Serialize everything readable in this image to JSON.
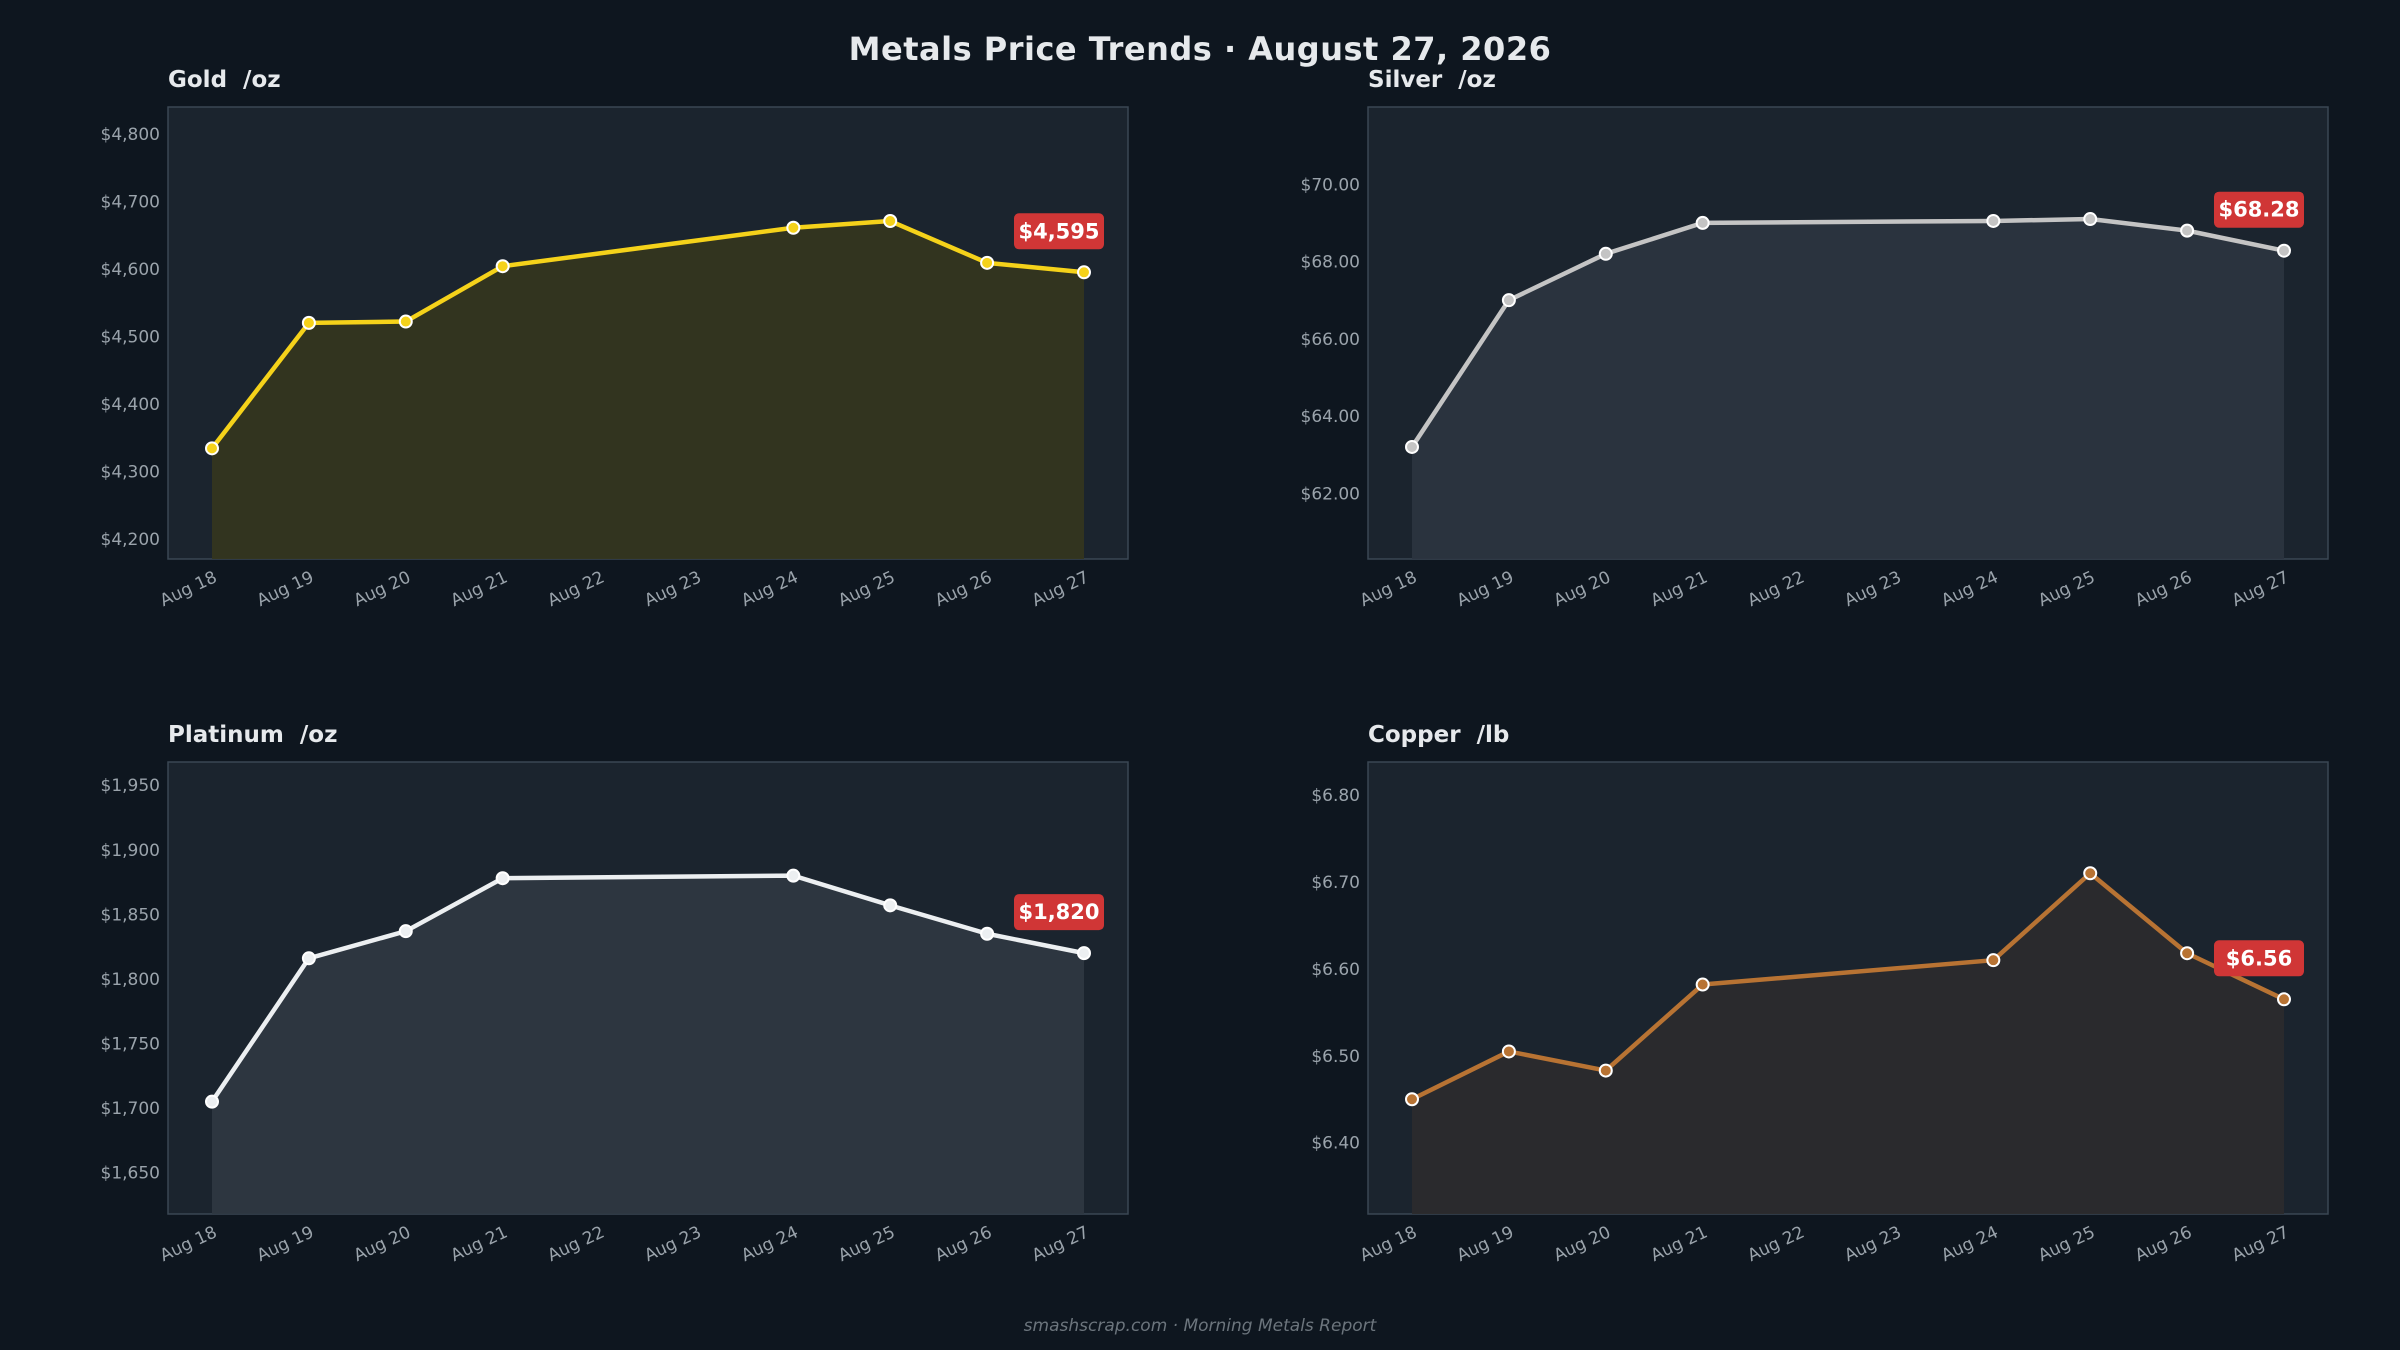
{
  "header": {
    "title": "Metals Price Trends  ·  August 27, 2026"
  },
  "footer": {
    "text": "smashscrap.com  ·  Morning Metals Report"
  },
  "colors": {
    "background": "#0e161f",
    "panel": "#1b242e",
    "badge": "#d03636"
  },
  "chart_data": [
    {
      "type": "line",
      "title": "Gold  /oz",
      "color": "#f5d21a",
      "fill": "#34361f",
      "categories": [
        "Aug 18",
        "Aug 19",
        "Aug 20",
        "Aug 21",
        "Aug 22",
        "Aug 23",
        "Aug 24",
        "Aug 25",
        "Aug 26",
        "Aug 27"
      ],
      "x": [
        "Aug 18",
        "Aug 19",
        "Aug 20",
        "Aug 21",
        "Aug 24",
        "Aug 25",
        "Aug 26",
        "Aug 27"
      ],
      "values": [
        4334,
        4520,
        4522,
        4604,
        4661,
        4671,
        4609,
        4595
      ],
      "ylim": [
        4170,
        4840
      ],
      "yticks": [
        4200,
        4300,
        4400,
        4500,
        4600,
        4700,
        4800
      ],
      "ytick_labels": [
        "$4,200",
        "$4,300",
        "$4,400",
        "$4,500",
        "$4,600",
        "$4,700",
        "$4,800"
      ],
      "last_label": "$4,595"
    },
    {
      "type": "line",
      "title": "Silver  /oz",
      "color": "#c4c4c4",
      "fill": "#2b353f",
      "categories": [
        "Aug 18",
        "Aug 19",
        "Aug 20",
        "Aug 21",
        "Aug 22",
        "Aug 23",
        "Aug 24",
        "Aug 25",
        "Aug 26",
        "Aug 27"
      ],
      "x": [
        "Aug 18",
        "Aug 19",
        "Aug 20",
        "Aug 21",
        "Aug 24",
        "Aug 25",
        "Aug 26",
        "Aug 27"
      ],
      "values": [
        63.2,
        67.0,
        68.2,
        69.0,
        69.05,
        69.1,
        68.8,
        68.28
      ],
      "ylim": [
        60.3,
        72.0
      ],
      "yticks": [
        62,
        64,
        66,
        68,
        70
      ],
      "ytick_labels": [
        "$62.00",
        "$64.00",
        "$66.00",
        "$68.00",
        "$70.00"
      ],
      "last_label": "$68.28"
    },
    {
      "type": "line",
      "title": "Platinum  /oz",
      "color": "#eceff1",
      "fill": "#2e3841",
      "categories": [
        "Aug 18",
        "Aug 19",
        "Aug 20",
        "Aug 21",
        "Aug 22",
        "Aug 23",
        "Aug 24",
        "Aug 25",
        "Aug 26",
        "Aug 27"
      ],
      "x": [
        "Aug 18",
        "Aug 19",
        "Aug 20",
        "Aug 21",
        "Aug 24",
        "Aug 25",
        "Aug 26",
        "Aug 27"
      ],
      "values": [
        1705,
        1816,
        1837,
        1878,
        1880,
        1857,
        1835,
        1820
      ],
      "ylim": [
        1618,
        1968
      ],
      "yticks": [
        1650,
        1700,
        1750,
        1800,
        1850,
        1900,
        1950
      ],
      "ytick_labels": [
        "$1,650",
        "$1,700",
        "$1,750",
        "$1,800",
        "$1,850",
        "$1,900",
        "$1,950"
      ],
      "last_label": "$1,820"
    },
    {
      "type": "line",
      "title": "Copper  /lb",
      "color": "#b87333",
      "fill": "#2b2b2d",
      "categories": [
        "Aug 18",
        "Aug 19",
        "Aug 20",
        "Aug 21",
        "Aug 22",
        "Aug 23",
        "Aug 24",
        "Aug 25",
        "Aug 26",
        "Aug 27"
      ],
      "x": [
        "Aug 18",
        "Aug 19",
        "Aug 20",
        "Aug 21",
        "Aug 24",
        "Aug 25",
        "Aug 26",
        "Aug 27"
      ],
      "values": [
        6.45,
        6.505,
        6.483,
        6.582,
        6.61,
        6.71,
        6.618,
        6.565
      ],
      "ylim": [
        6.318,
        6.838
      ],
      "yticks": [
        6.4,
        6.5,
        6.6,
        6.7,
        6.8
      ],
      "ytick_labels": [
        "$6.40",
        "$6.50",
        "$6.60",
        "$6.70",
        "$6.80"
      ],
      "last_label": "$6.56"
    }
  ]
}
